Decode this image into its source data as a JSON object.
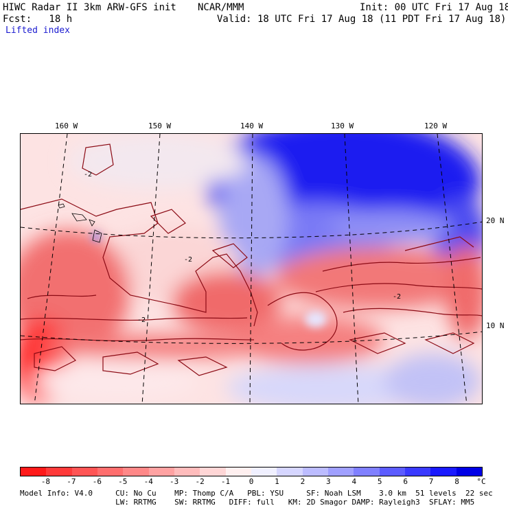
{
  "header": {
    "title_left": "HIWC Radar II 3km ARW-GFS init",
    "org": "NCAR/MMM",
    "init": "Init: 00 UTC Fri 17 Aug 18",
    "fcst": "Fcst:   18 h",
    "valid": "Valid: 18 UTC Fri 17 Aug 18 (11 PDT Fri 17 Aug 18)",
    "field": "Lifted index"
  },
  "map": {
    "lon_labels": [
      "160 W",
      "150 W",
      "140 W",
      "130 W",
      "120 W"
    ],
    "lat_labels": [
      "20 N",
      "10 N"
    ],
    "contour_label": "-2"
  },
  "legend": {
    "ticks": [
      "-8",
      "-7",
      "-6",
      "-5",
      "-4",
      "-3",
      "-2",
      "-1",
      "0",
      "1",
      "2",
      "3",
      "4",
      "5",
      "6",
      "7",
      "8"
    ],
    "unit": "°C",
    "colors": [
      "#ff1a1a",
      "#ff3a3a",
      "#ff5555",
      "#ff6e6e",
      "#ff8888",
      "#ffa2a2",
      "#ffbcbc",
      "#ffd6d6",
      "#fff0f0",
      "#f0f0ff",
      "#d6d6ff",
      "#bcbcff",
      "#a0a0ff",
      "#8080ff",
      "#5c5cff",
      "#3a3aff",
      "#1a1aff",
      "#0000e6"
    ]
  },
  "footer": {
    "line1": "Model Info: V4.0     CU: No Cu    MP: Thomp C/A   PBL: YSU     SF: Noah LSM    3.0 km  51 levels  22 sec",
    "line2": "                     LW: RRTMG    SW: RRTMG   DIFF: full   KM: 2D Smagor DAMP: Rayleigh3  SFLAY: MM5"
  }
}
